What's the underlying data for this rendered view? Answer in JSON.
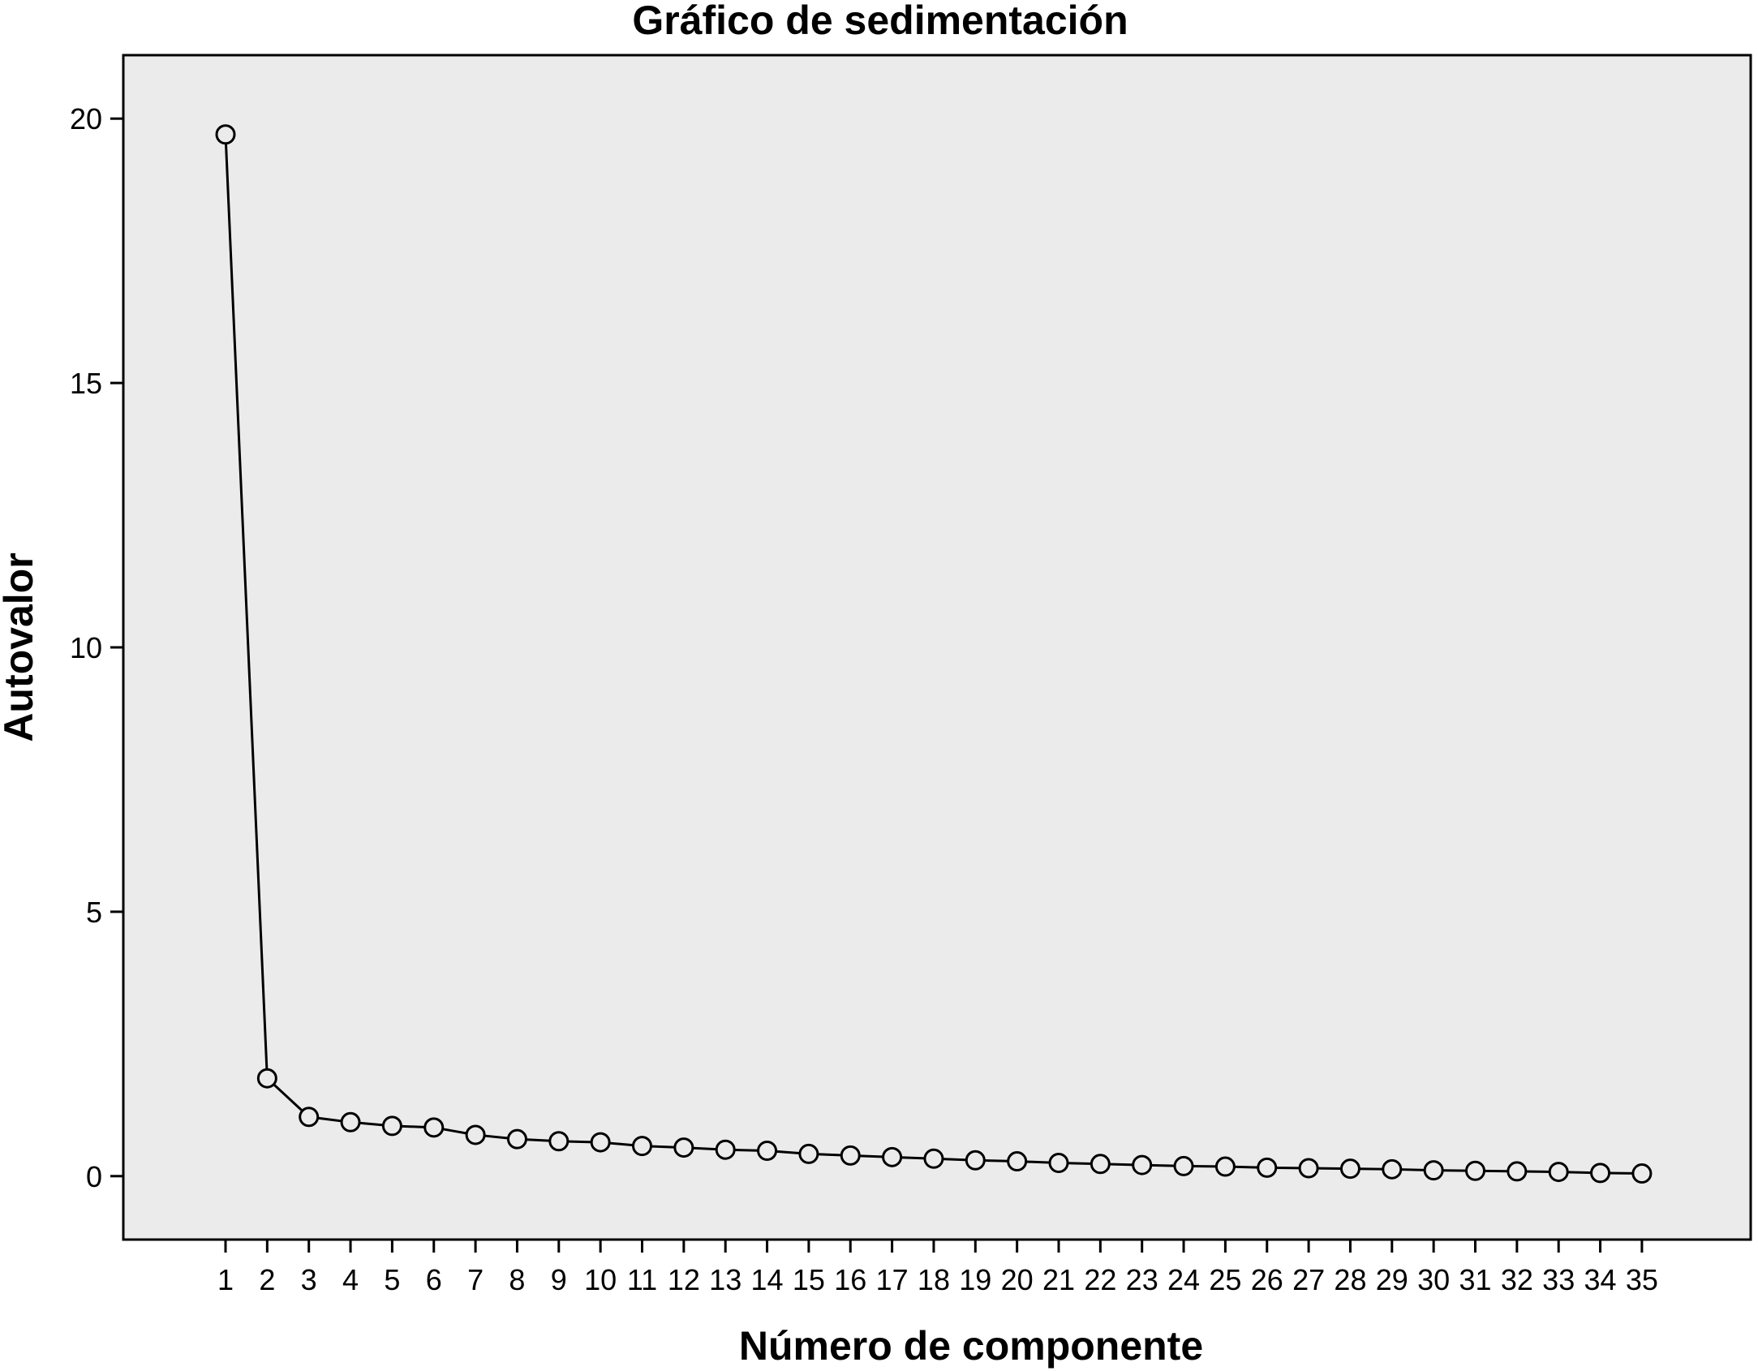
{
  "chart_data": {
    "type": "line",
    "title": "Gráfico de sedimentación",
    "xlabel": "Número de componente",
    "ylabel": "Autovalor",
    "x": [
      1,
      2,
      3,
      4,
      5,
      6,
      7,
      8,
      9,
      10,
      11,
      12,
      13,
      14,
      15,
      16,
      17,
      18,
      19,
      20,
      21,
      22,
      23,
      24,
      25,
      26,
      27,
      28,
      29,
      30,
      31,
      32,
      33,
      34,
      35
    ],
    "x_tick_labels": [
      "1",
      "2",
      "3",
      "4",
      "5",
      "6",
      "7",
      "8",
      "9",
      "10",
      "11",
      "12",
      "13",
      "14",
      "15",
      "16",
      "17",
      "18",
      "19",
      "20",
      "21",
      "22",
      "23",
      "24",
      "25",
      "26",
      "27",
      "28",
      "29",
      "30",
      "31",
      "32",
      "33",
      "34",
      "35"
    ],
    "series": [
      {
        "values": [
          19.7,
          1.85,
          1.12,
          1.02,
          0.95,
          0.92,
          0.78,
          0.7,
          0.66,
          0.64,
          0.57,
          0.54,
          0.5,
          0.48,
          0.42,
          0.39,
          0.36,
          0.33,
          0.3,
          0.28,
          0.25,
          0.23,
          0.21,
          0.19,
          0.18,
          0.16,
          0.15,
          0.14,
          0.13,
          0.11,
          0.1,
          0.09,
          0.08,
          0.06,
          0.05
        ],
        "color": "#000000",
        "marker": "open-circle"
      }
    ],
    "ylim": [
      -1.2,
      21.2
    ],
    "yticks": [
      0,
      5,
      10,
      15,
      20
    ],
    "y_tick_labels": [
      "0",
      "5",
      "10",
      "15",
      "20"
    ],
    "grid": false,
    "plot_background": "#ebebeb",
    "legend": "none"
  }
}
